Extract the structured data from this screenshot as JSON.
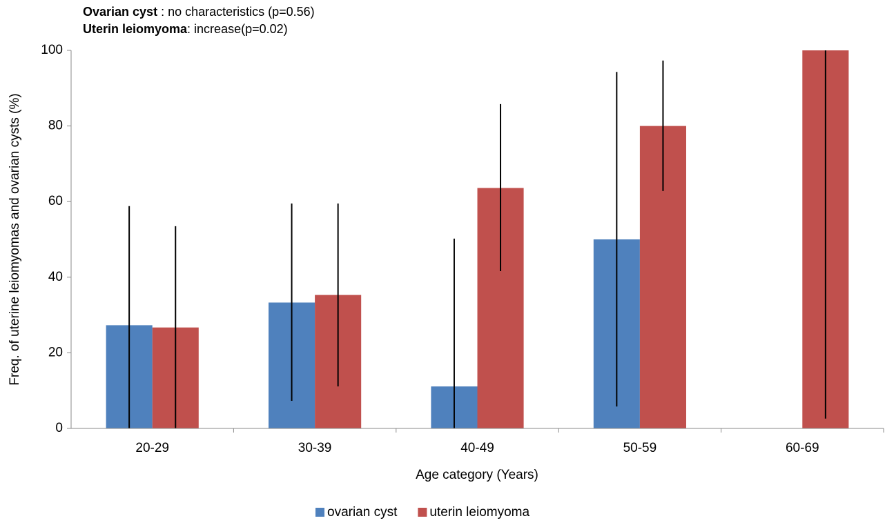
{
  "chart_data": {
    "type": "bar",
    "annotations": [
      {
        "bold": "Ovarian cyst",
        "text": " : no characteristics (p=0.56)"
      },
      {
        "bold": "Uterin leiomyoma",
        "text": ": increase(p=0.02)"
      }
    ],
    "y_label": "Freq. of uterine leiomyomas and ovarian cysts (%)",
    "x_label": "Age category (Years)",
    "categories": [
      "20-29",
      "30-39",
      "40-49",
      "50-59",
      "60-69"
    ],
    "series": [
      {
        "name": "ovarian cyst",
        "color": "#4f81bd",
        "values": [
          27.3,
          33.3,
          11.1,
          50,
          null
        ],
        "ci_low": [
          0,
          7.3,
          0,
          5.8,
          null
        ],
        "ci_high": [
          58.8,
          59.5,
          50.2,
          94.3,
          null
        ]
      },
      {
        "name": "uterin leiomyoma",
        "color": "#c0504d",
        "values": [
          26.7,
          35.3,
          63.6,
          80,
          100
        ],
        "ci_low": [
          0,
          11.1,
          41.6,
          62.8,
          2.6
        ],
        "ci_high": [
          53.5,
          59.5,
          85.8,
          97.3,
          100
        ]
      }
    ],
    "ylim": [
      0,
      100
    ],
    "yticks": [
      0,
      20,
      40,
      60,
      80,
      100
    ],
    "grid": false,
    "legend": "bottom"
  }
}
